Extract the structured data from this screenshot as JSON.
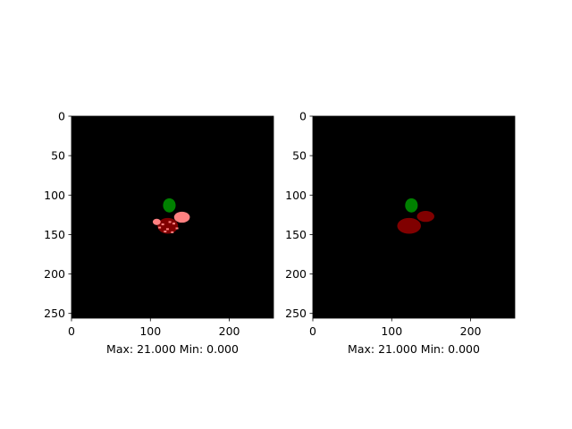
{
  "chart_data": [
    {
      "type": "heatmap",
      "xlabel": "Max: 21.000 Min: 0.000",
      "xlim": [
        0,
        256
      ],
      "ylim": [
        256,
        0
      ],
      "xticks": [
        "0",
        "100",
        "200"
      ],
      "xtick_values": [
        0,
        100,
        200
      ],
      "yticks": [
        "0",
        "50",
        "100",
        "150",
        "200",
        "250"
      ],
      "ytick_values": [
        0,
        50,
        100,
        150,
        200,
        250
      ],
      "background_color": "#000000",
      "regions": [
        {
          "label": "dark-red",
          "color": "#800000",
          "center": [
            122,
            139
          ],
          "radius": [
            13,
            10
          ]
        },
        {
          "label": "pink",
          "color": "#ff8080",
          "center": [
            140,
            128
          ],
          "radius": [
            10,
            7
          ]
        },
        {
          "label": "pink-edge",
          "color": "#ff8080",
          "center": [
            108,
            134
          ],
          "radius": [
            5,
            4
          ]
        },
        {
          "label": "green",
          "color": "#008000",
          "center": [
            124,
            113
          ],
          "radius": [
            8,
            9
          ]
        }
      ]
    },
    {
      "type": "heatmap",
      "xlabel": "Max: 21.000 Min: 0.000",
      "xlim": [
        0,
        256
      ],
      "ylim": [
        256,
        0
      ],
      "xticks": [
        "0",
        "100",
        "200"
      ],
      "xtick_values": [
        0,
        100,
        200
      ],
      "yticks": [
        "0",
        "50",
        "100",
        "150",
        "200",
        "250"
      ],
      "ytick_values": [
        0,
        50,
        100,
        150,
        200,
        250
      ],
      "background_color": "#000000",
      "regions": [
        {
          "label": "dark-red",
          "color": "#800000",
          "center": [
            122,
            139
          ],
          "radius": [
            15,
            10
          ]
        },
        {
          "label": "dark-red-right",
          "color": "#800000",
          "center": [
            143,
            127
          ],
          "radius": [
            11,
            7
          ]
        },
        {
          "label": "green",
          "color": "#008000",
          "center": [
            125,
            113
          ],
          "radius": [
            8,
            9
          ]
        }
      ]
    }
  ]
}
